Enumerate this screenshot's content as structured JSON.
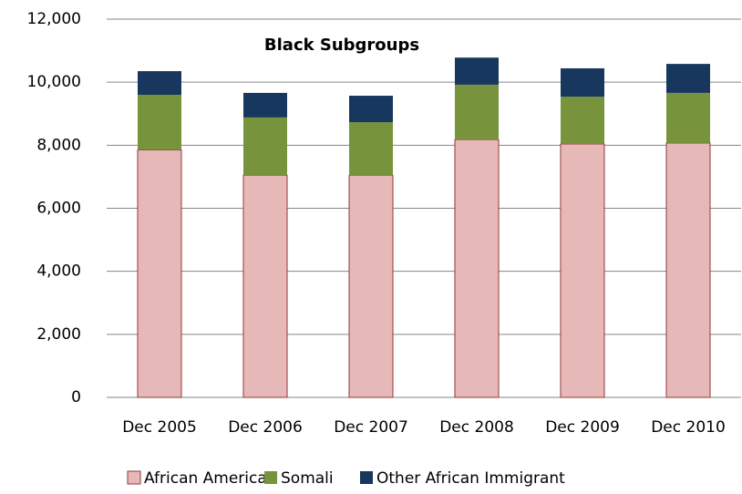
{
  "chart_data": {
    "type": "stacked_bar",
    "title": "Black Subgroups",
    "categories": [
      "Dec 2005",
      "Dec 2006",
      "Dec 2007",
      "Dec 2008",
      "Dec 2009",
      "Dec 2010"
    ],
    "series": [
      {
        "name": "African American",
        "color": "#e6b9b8",
        "values": [
          7850,
          7050,
          7050,
          8180,
          8040,
          8070
        ]
      },
      {
        "name": "Somali",
        "color": "#77933c",
        "values": [
          1750,
          1830,
          1680,
          1740,
          1500,
          1590
        ]
      },
      {
        "name": "Other African Immigrant",
        "color": "#17375e",
        "values": [
          750,
          780,
          840,
          860,
          900,
          920
        ]
      }
    ],
    "ylim": [
      0,
      12000
    ],
    "yticks": [
      0,
      {
        "value": 2000,
        "label": "2,000"
      },
      {
        "value": 4000,
        "label": "4,000"
      },
      {
        "value": 6000,
        "label": "6,000"
      },
      {
        "value": 8000,
        "label": "8,000"
      },
      {
        "value": 10000,
        "label": "10,000"
      },
      {
        "value": 12000,
        "label": "12,000"
      }
    ],
    "grid": true,
    "legend": "bottom"
  }
}
